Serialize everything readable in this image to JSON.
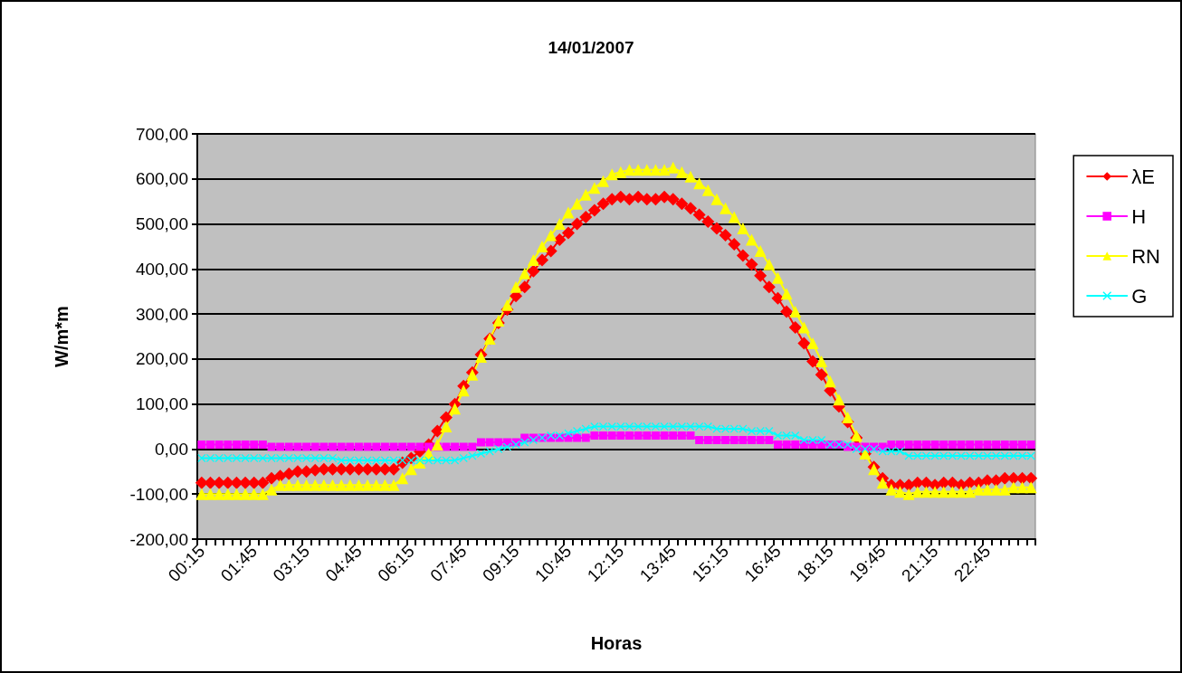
{
  "chart_data": {
    "type": "line",
    "title": "14/01/2007",
    "xlabel": "Horas",
    "ylabel": "W/m*m",
    "categories": [
      "00:15",
      null,
      null,
      null,
      null,
      null,
      "01:45",
      null,
      null,
      null,
      null,
      null,
      "03:15",
      null,
      null,
      null,
      null,
      null,
      "04:45",
      null,
      null,
      null,
      null,
      null,
      "06:15",
      null,
      null,
      null,
      null,
      null,
      "07:45",
      null,
      null,
      null,
      null,
      null,
      "09:15",
      null,
      null,
      null,
      null,
      null,
      "10:45",
      null,
      null,
      null,
      null,
      null,
      "12:15",
      null,
      null,
      null,
      null,
      null,
      "13:45",
      null,
      null,
      null,
      null,
      null,
      "15:15",
      null,
      null,
      null,
      null,
      null,
      "16:45",
      null,
      null,
      null,
      null,
      null,
      "18:15",
      null,
      null,
      null,
      null,
      null,
      "19:45",
      null,
      null,
      null,
      null,
      null,
      "21:15",
      null,
      null,
      null,
      null,
      null,
      "22:45",
      null,
      null,
      null,
      null,
      null
    ],
    "series": [
      {
        "name": "λE",
        "color": "#ff0000",
        "marker": "diamond",
        "values": [
          -75,
          -75,
          -75,
          -75,
          -75,
          -75,
          -75,
          -75,
          -65,
          -60,
          -55,
          -50,
          -50,
          -47,
          -45,
          -45,
          -45,
          -45,
          -45,
          -45,
          -45,
          -45,
          -45,
          -30,
          -20,
          -5,
          10,
          40,
          70,
          100,
          140,
          170,
          210,
          245,
          280,
          310,
          340,
          360,
          395,
          420,
          440,
          465,
          480,
          500,
          515,
          530,
          545,
          555,
          560,
          555,
          560,
          555,
          555,
          560,
          555,
          545,
          535,
          520,
          505,
          490,
          475,
          455,
          430,
          410,
          385,
          360,
          335,
          305,
          270,
          235,
          195,
          165,
          130,
          95,
          60,
          25,
          -10,
          -40,
          -65,
          -80,
          -80,
          -80,
          -75,
          -75,
          -80,
          -75,
          -75,
          -80,
          -75,
          -75,
          -70,
          -70,
          -65,
          -65,
          -65,
          -65
        ]
      },
      {
        "name": "H",
        "color": "#ff00ff",
        "marker": "square",
        "values": [
          10,
          10,
          10,
          10,
          10,
          10,
          10,
          10,
          5,
          5,
          5,
          5,
          5,
          5,
          5,
          5,
          5,
          5,
          5,
          5,
          5,
          5,
          5,
          5,
          5,
          5,
          5,
          5,
          5,
          5,
          5,
          5,
          15,
          15,
          15,
          15,
          15,
          25,
          25,
          25,
          25,
          25,
          25,
          25,
          25,
          30,
          30,
          30,
          30,
          30,
          30,
          30,
          30,
          30,
          30,
          30,
          30,
          20,
          20,
          20,
          20,
          20,
          20,
          20,
          20,
          20,
          10,
          10,
          10,
          10,
          10,
          10,
          10,
          10,
          5,
          5,
          5,
          5,
          5,
          10,
          10,
          10,
          10,
          10,
          10,
          10,
          10,
          10,
          10,
          10,
          10,
          10,
          10,
          10,
          10,
          10
        ]
      },
      {
        "name": "RN",
        "color": "#ffff00",
        "marker": "triangle",
        "values": [
          -100,
          -100,
          -100,
          -100,
          -100,
          -100,
          -100,
          -100,
          -90,
          -80,
          -80,
          -80,
          -80,
          -80,
          -80,
          -80,
          -80,
          -80,
          -80,
          -80,
          -80,
          -80,
          -80,
          -65,
          -45,
          -30,
          -10,
          10,
          50,
          90,
          130,
          165,
          205,
          245,
          285,
          320,
          360,
          390,
          420,
          450,
          475,
          500,
          525,
          545,
          565,
          580,
          595,
          610,
          615,
          620,
          620,
          620,
          620,
          620,
          625,
          615,
          605,
          590,
          575,
          555,
          535,
          515,
          490,
          465,
          440,
          410,
          380,
          345,
          305,
          270,
          235,
          195,
          150,
          110,
          70,
          30,
          -10,
          -45,
          -75,
          -90,
          -95,
          -100,
          -95,
          -95,
          -95,
          -95,
          -95,
          -95,
          -95,
          -90,
          -90,
          -90,
          -90,
          -85,
          -85,
          -85
        ]
      },
      {
        "name": "G",
        "color": "#00ffff",
        "marker": "cross",
        "values": [
          -20,
          -20,
          -20,
          -20,
          -20,
          -20,
          -20,
          -20,
          -20,
          -20,
          -20,
          -20,
          -20,
          -20,
          -20,
          -20,
          -25,
          -25,
          -25,
          -25,
          -25,
          -25,
          -25,
          -25,
          -25,
          -25,
          -25,
          -25,
          -25,
          -25,
          -20,
          -15,
          -10,
          -5,
          0,
          5,
          10,
          15,
          20,
          25,
          30,
          30,
          35,
          40,
          45,
          50,
          50,
          50,
          50,
          50,
          50,
          50,
          50,
          50,
          50,
          50,
          50,
          50,
          50,
          45,
          45,
          45,
          45,
          40,
          40,
          40,
          30,
          30,
          30,
          20,
          20,
          20,
          10,
          10,
          10,
          0,
          0,
          0,
          -5,
          -5,
          -5,
          -15,
          -15,
          -15,
          -15,
          -15,
          -15,
          -15,
          -15,
          -15,
          -15,
          -15,
          -15,
          -15,
          -15,
          -15
        ]
      }
    ],
    "ylim": [
      -200,
      700
    ],
    "yticks": [
      {
        "value": -200,
        "label": "-200,00"
      },
      {
        "value": -100,
        "label": "-100,00"
      },
      {
        "value": 0,
        "label": "0,00"
      },
      {
        "value": 100,
        "label": "100,00"
      },
      {
        "value": 200,
        "label": "200,00"
      },
      {
        "value": 300,
        "label": "300,00"
      },
      {
        "value": 400,
        "label": "400,00"
      },
      {
        "value": 500,
        "label": "500,00"
      },
      {
        "value": 600,
        "label": "600,00"
      },
      {
        "value": 700,
        "label": "700,00"
      }
    ],
    "grid": "y",
    "legend": "right",
    "line_style": "solid"
  }
}
